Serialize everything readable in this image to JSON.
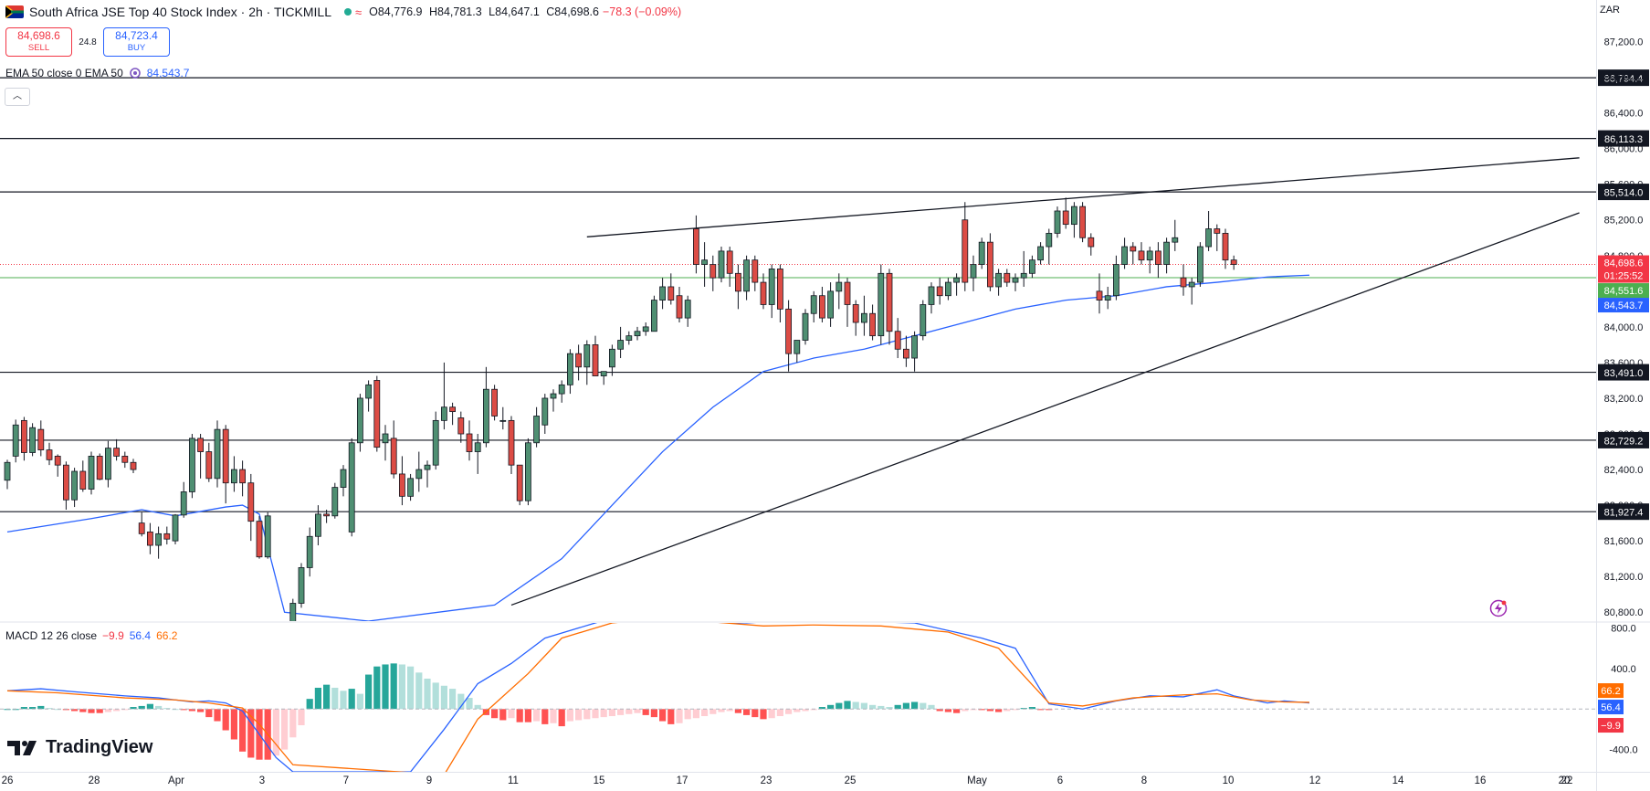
{
  "header": {
    "title": "South Africa JSE Top 40 Stock Index · 2h · TICKMILL",
    "approx_symbol": "≈",
    "ohlc": {
      "open": "O84,776.9",
      "high": "H84,781.3",
      "low": "L84,647.1",
      "close": "C84,698.6"
    },
    "change": "−78.3 (−0.09%)"
  },
  "trade": {
    "sell_price": "84,698.6",
    "sell_label": "SELL",
    "spread": "24.8",
    "buy_price": "84,723.4",
    "buy_label": "BUY"
  },
  "ema_legend": {
    "label": "EMA 50 close 0 EMA 50",
    "value": "84,543.7"
  },
  "macd_legend": {
    "label": "MACD 12 26 close",
    "hist": "−9.9",
    "macd": "56.4",
    "signal": "66.2"
  },
  "currency": "ZAR",
  "logo_text": "TradingView",
  "colors": {
    "up": "#4f8f72",
    "down": "#dc4c45",
    "ema": "#2962ff",
    "macd": "#2962ff",
    "signal": "#ff6d00",
    "hist_up_strong": "#26a69a",
    "hist_up_weak": "#b2dfdb",
    "hist_down_strong": "#ff5252",
    "hist_down_weak": "#ffcdd2"
  },
  "chart_data": {
    "type": "candlestick",
    "title": "South Africa JSE Top 40 Stock Index · 2h · TICKMILL",
    "y_axis_ticks": [
      87200,
      86800,
      86400,
      86000,
      85600,
      85200,
      84800,
      84400,
      84000,
      83600,
      83200,
      82800,
      82400,
      82000,
      81600,
      81200,
      80800
    ],
    "y_range": [
      80700,
      87400
    ],
    "x_axis_ticks": [
      "26",
      "28",
      "Apr",
      "3",
      "7",
      "9",
      "11",
      "15",
      "17",
      "23",
      "25",
      "May",
      "6",
      "8",
      "10",
      "12",
      "14",
      "16",
      "20",
      "22"
    ],
    "horizontal_levels": [
      86794.4,
      86113.3,
      85514.0,
      83491.0,
      82729.2,
      81927.4
    ],
    "price_labels": {
      "last": "84,698.6",
      "countdown": "01:25:52",
      "green_level": "84,551.6",
      "ema": "84,543.7"
    },
    "trendlines": [
      {
        "name": "upper",
        "from": {
          "bar": 69,
          "price": 85010
        },
        "to": {
          "bar": 173,
          "price": 85790
        }
      },
      {
        "name": "lower",
        "from": {
          "bar": 60,
          "price": 80880
        },
        "to": {
          "bar": 173,
          "price": 84790
        }
      }
    ],
    "candles": [
      [
        82280,
        82510,
        82180,
        82480
      ],
      [
        82550,
        82960,
        82480,
        82900
      ],
      [
        82950,
        82990,
        82500,
        82590
      ],
      [
        82590,
        82920,
        82550,
        82870
      ],
      [
        82850,
        82950,
        82550,
        82620
      ],
      [
        82620,
        82700,
        82450,
        82510
      ],
      [
        82550,
        82570,
        82320,
        82450
      ],
      [
        82450,
        82490,
        81950,
        82060
      ],
      [
        82060,
        82420,
        81980,
        82380
      ],
      [
        82380,
        82500,
        82150,
        82180
      ],
      [
        82180,
        82600,
        82120,
        82550
      ],
      [
        82550,
        82580,
        82280,
        82290
      ],
      [
        82290,
        82720,
        82200,
        82640
      ],
      [
        82640,
        82740,
        82500,
        82550
      ],
      [
        82550,
        82600,
        82420,
        82480
      ],
      [
        82480,
        82520,
        82360,
        82400
      ],
      [
        81800,
        81920,
        81650,
        81680
      ],
      [
        81700,
        81800,
        81450,
        81550
      ],
      [
        81550,
        81760,
        81400,
        81680
      ],
      [
        81680,
        81760,
        81560,
        81620
      ],
      [
        81600,
        81900,
        81560,
        81890
      ],
      [
        81890,
        82260,
        81860,
        82150
      ],
      [
        82150,
        82800,
        82080,
        82750
      ],
      [
        82750,
        82800,
        82300,
        82600
      ],
      [
        82600,
        82700,
        82260,
        82300
      ],
      [
        82300,
        82950,
        82200,
        82850
      ],
      [
        82850,
        82900,
        82020,
        82250
      ],
      [
        82250,
        82550,
        82150,
        82400
      ],
      [
        82400,
        82500,
        82100,
        82250
      ],
      [
        82250,
        82350,
        81600,
        81820
      ],
      [
        81820,
        81880,
        81400,
        81420
      ],
      [
        81420,
        81920,
        81400,
        81880
      ],
      [
        80600,
        80700,
        80500,
        80500
      ],
      [
        80600,
        80700,
        80500,
        80650
      ],
      [
        80650,
        80950,
        80550,
        80900
      ],
      [
        80900,
        81350,
        80850,
        81300
      ],
      [
        81300,
        81750,
        81200,
        81650
      ],
      [
        81650,
        82000,
        81550,
        81900
      ],
      [
        81900,
        81950,
        81800,
        81880
      ],
      [
        81880,
        82250,
        81850,
        82200
      ],
      [
        82200,
        82450,
        82100,
        82400
      ],
      [
        81700,
        82750,
        81650,
        82700
      ],
      [
        82700,
        83250,
        82600,
        83200
      ],
      [
        83200,
        83400,
        83050,
        83350
      ],
      [
        83400,
        83450,
        82600,
        82650
      ],
      [
        82700,
        82900,
        82500,
        82800
      ],
      [
        82750,
        82950,
        82300,
        82350
      ],
      [
        82350,
        82550,
        82000,
        82100
      ],
      [
        82100,
        82350,
        82050,
        82300
      ],
      [
        82300,
        82600,
        82150,
        82400
      ],
      [
        82400,
        82500,
        82200,
        82450
      ],
      [
        82450,
        83050,
        82400,
        82950
      ],
      [
        82950,
        83600,
        82850,
        83100
      ],
      [
        83100,
        83150,
        82900,
        83050
      ],
      [
        82980,
        83050,
        82700,
        82800
      ],
      [
        82800,
        82950,
        82500,
        82600
      ],
      [
        82600,
        82800,
        82350,
        82700
      ],
      [
        82700,
        83550,
        82650,
        83300
      ],
      [
        83300,
        83350,
        82950,
        83000
      ],
      [
        82950,
        83100,
        82850,
        82950
      ],
      [
        82950,
        83000,
        82350,
        82450
      ],
      [
        82450,
        82450,
        82000,
        82050
      ],
      [
        82050,
        82750,
        82000,
        82700
      ],
      [
        82700,
        83100,
        82650,
        83000
      ],
      [
        82900,
        83250,
        82800,
        83200
      ],
      [
        83200,
        83300,
        83050,
        83250
      ],
      [
        83250,
        83400,
        83150,
        83350
      ],
      [
        83350,
        83750,
        83250,
        83700
      ],
      [
        83700,
        83800,
        83400,
        83550
      ],
      [
        83550,
        83850,
        83350,
        83800
      ],
      [
        83800,
        83900,
        83450,
        83450
      ],
      [
        83450,
        83500,
        83350,
        83500
      ],
      [
        83550,
        83800,
        83450,
        83750
      ],
      [
        83750,
        84000,
        83650,
        83850
      ],
      [
        83850,
        83950,
        83800,
        83900
      ],
      [
        83900,
        84000,
        83850,
        83950
      ],
      [
        83950,
        84050,
        83900,
        84000
      ],
      [
        83950,
        84350,
        83950,
        84300
      ],
      [
        84300,
        84550,
        84200,
        84450
      ],
      [
        84450,
        84600,
        84250,
        84300
      ],
      [
        84350,
        84450,
        84050,
        84100
      ],
      [
        84100,
        84350,
        84000,
        84300
      ],
      [
        85100,
        85250,
        84600,
        84700
      ],
      [
        84700,
        84950,
        84450,
        84750
      ],
      [
        84700,
        84800,
        84400,
        84550
      ],
      [
        84550,
        84900,
        84500,
        84850
      ],
      [
        84850,
        84900,
        84450,
        84600
      ],
      [
        84600,
        84700,
        84200,
        84400
      ],
      [
        84400,
        84800,
        84300,
        84750
      ],
      [
        84750,
        84800,
        84400,
        84500
      ],
      [
        84500,
        84600,
        84200,
        84250
      ],
      [
        84250,
        84700,
        84100,
        84650
      ],
      [
        84650,
        84700,
        84050,
        84200
      ],
      [
        84200,
        84300,
        83500,
        83700
      ],
      [
        83700,
        83850,
        83600,
        83850
      ],
      [
        83850,
        84200,
        83800,
        84150
      ],
      [
        84150,
        84400,
        84050,
        84350
      ],
      [
        84350,
        84450,
        84050,
        84100
      ],
      [
        84100,
        84500,
        84000,
        84400
      ],
      [
        84400,
        84600,
        84200,
        84500
      ],
      [
        84500,
        84550,
        84000,
        84250
      ],
      [
        84250,
        84300,
        83900,
        84050
      ],
      [
        84050,
        84350,
        83900,
        84150
      ],
      [
        84150,
        84250,
        83850,
        83900
      ],
      [
        83900,
        84700,
        83800,
        84600
      ],
      [
        84600,
        84650,
        83800,
        83950
      ],
      [
        83950,
        84100,
        83650,
        83750
      ],
      [
        83750,
        83900,
        83550,
        83650
      ],
      [
        83650,
        83950,
        83500,
        83900
      ],
      [
        83900,
        84300,
        83850,
        84250
      ],
      [
        84250,
        84500,
        84150,
        84450
      ],
      [
        84450,
        84550,
        84250,
        84350
      ],
      [
        84350,
        84550,
        84300,
        84500
      ],
      [
        84500,
        84600,
        84350,
        84550
      ],
      [
        85200,
        85400,
        84400,
        84500
      ],
      [
        84550,
        84800,
        84400,
        84700
      ],
      [
        84700,
        85000,
        84650,
        84950
      ],
      [
        84950,
        85050,
        84400,
        84450
      ],
      [
        84450,
        84650,
        84350,
        84600
      ],
      [
        84600,
        84650,
        84450,
        84500
      ],
      [
        84500,
        84600,
        84400,
        84550
      ],
      [
        84550,
        84850,
        84450,
        84600
      ],
      [
        84600,
        84800,
        84550,
        84750
      ],
      [
        84750,
        84950,
        84700,
        84900
      ],
      [
        84900,
        85100,
        84700,
        85050
      ],
      [
        85050,
        85350,
        85000,
        85300
      ],
      [
        85300,
        85450,
        85100,
        85150
      ],
      [
        85150,
        85400,
        85000,
        85350
      ],
      [
        85350,
        85400,
        84950,
        85000
      ],
      [
        85000,
        85050,
        84800,
        84900
      ],
      [
        84400,
        84600,
        84150,
        84300
      ],
      [
        84300,
        84450,
        84200,
        84350
      ],
      [
        84350,
        84800,
        84300,
        84700
      ],
      [
        84700,
        85000,
        84650,
        84900
      ],
      [
        84900,
        84950,
        84700,
        84850
      ],
      [
        84850,
        84950,
        84700,
        84750
      ],
      [
        84750,
        84900,
        84600,
        84850
      ],
      [
        84850,
        84950,
        84550,
        84700
      ],
      [
        84700,
        85000,
        84600,
        84950
      ],
      [
        84950,
        85200,
        84850,
        85000
      ],
      [
        84550,
        84700,
        84350,
        84450
      ],
      [
        84450,
        84550,
        84250,
        84500
      ],
      [
        84500,
        84950,
        84450,
        84900
      ],
      [
        84900,
        85300,
        84850,
        85100
      ],
      [
        85100,
        85150,
        84850,
        85050
      ],
      [
        85050,
        85100,
        84650,
        84750
      ],
      [
        84750,
        84800,
        84640,
        84700
      ]
    ],
    "ema50": [
      [
        0,
        81700
      ],
      [
        10,
        81850
      ],
      [
        16,
        81950
      ],
      [
        20,
        81880
      ],
      [
        26,
        81980
      ],
      [
        28,
        82000
      ],
      [
        30,
        81900
      ],
      [
        33,
        80800
      ],
      [
        43,
        80700
      ],
      [
        58,
        80880
      ],
      [
        66,
        81400
      ],
      [
        72,
        82000
      ],
      [
        78,
        82600
      ],
      [
        84,
        83100
      ],
      [
        90,
        83500
      ],
      [
        96,
        83650
      ],
      [
        102,
        83750
      ],
      [
        108,
        83900
      ],
      [
        114,
        84050
      ],
      [
        120,
        84200
      ],
      [
        126,
        84300
      ],
      [
        132,
        84350
      ],
      [
        138,
        84450
      ],
      [
        144,
        84500
      ],
      [
        150,
        84560
      ],
      [
        155,
        84580
      ]
    ],
    "macd": {
      "y_ticks": [
        800.0,
        400.0,
        0,
        -400.0
      ],
      "y_range": [
        -620,
        850
      ],
      "macd_line": [
        [
          0,
          180
        ],
        [
          4,
          200
        ],
        [
          8,
          170
        ],
        [
          14,
          130
        ],
        [
          18,
          110
        ],
        [
          22,
          70
        ],
        [
          24,
          80
        ],
        [
          26,
          60
        ],
        [
          28,
          -20
        ],
        [
          30,
          -250
        ],
        [
          32,
          -480
        ],
        [
          34,
          -620
        ],
        [
          48,
          -620
        ],
        [
          52,
          -200
        ],
        [
          56,
          250
        ],
        [
          60,
          450
        ],
        [
          64,
          700
        ],
        [
          68,
          800
        ],
        [
          72,
          900
        ],
        [
          78,
          980
        ],
        [
          82,
          860
        ],
        [
          88,
          850
        ],
        [
          94,
          880
        ],
        [
          100,
          870
        ],
        [
          108,
          850
        ],
        [
          116,
          700
        ],
        [
          120,
          600
        ],
        [
          124,
          50
        ],
        [
          128,
          0
        ],
        [
          132,
          80
        ],
        [
          136,
          130
        ],
        [
          140,
          120
        ],
        [
          144,
          190
        ],
        [
          146,
          130
        ],
        [
          150,
          60
        ],
        [
          152,
          80
        ],
        [
          155,
          60
        ]
      ],
      "signal_line": [
        [
          0,
          180
        ],
        [
          6,
          160
        ],
        [
          14,
          110
        ],
        [
          20,
          90
        ],
        [
          24,
          60
        ],
        [
          28,
          10
        ],
        [
          30,
          -150
        ],
        [
          34,
          -550
        ],
        [
          52,
          -650
        ],
        [
          56,
          -100
        ],
        [
          62,
          350
        ],
        [
          66,
          700
        ],
        [
          72,
          850
        ],
        [
          78,
          900
        ],
        [
          84,
          860
        ],
        [
          90,
          820
        ],
        [
          96,
          830
        ],
        [
          104,
          820
        ],
        [
          112,
          760
        ],
        [
          118,
          600
        ],
        [
          124,
          60
        ],
        [
          128,
          30
        ],
        [
          134,
          110
        ],
        [
          140,
          140
        ],
        [
          144,
          150
        ],
        [
          148,
          90
        ],
        [
          152,
          70
        ],
        [
          155,
          66
        ]
      ],
      "histogram": [
        0,
        0,
        20,
        20,
        30,
        10,
        0,
        -10,
        -20,
        -30,
        -40,
        -40,
        -30,
        -20,
        -10,
        20,
        30,
        50,
        30,
        10,
        0,
        -10,
        -20,
        -30,
        -80,
        -120,
        -210,
        -300,
        -420,
        -480,
        -500,
        -500,
        -460,
        -400,
        -280,
        -160,
        100,
        210,
        240,
        210,
        180,
        200,
        150,
        340,
        420,
        440,
        450,
        440,
        420,
        360,
        300,
        260,
        230,
        200,
        150,
        110,
        40,
        -60,
        -90,
        -110,
        -90,
        -130,
        -130,
        -120,
        -150,
        -140,
        -170,
        -120,
        -110,
        -100,
        -90,
        -80,
        -70,
        -60,
        -50,
        -40,
        -60,
        -80,
        -120,
        -150,
        -140,
        -100,
        -90,
        -70,
        -50,
        -30,
        -20,
        -40,
        -60,
        -80,
        -100,
        -90,
        -70,
        -50,
        -30,
        -20,
        -10,
        20,
        40,
        60,
        80,
        70,
        60,
        40,
        30,
        20,
        40,
        60,
        70,
        60,
        40,
        -20,
        -30,
        -40,
        -20,
        -10,
        -10,
        -20,
        -30,
        -20,
        -10,
        10,
        20,
        -10,
        -10
      ]
    }
  }
}
